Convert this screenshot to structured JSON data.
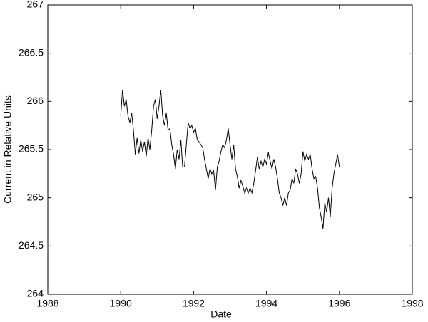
{
  "chart_data": {
    "type": "line",
    "xlabel": "Date",
    "ylabel": "Current in Relative Units",
    "xlim": [
      1988,
      1998
    ],
    "xticks": [
      1988,
      1990,
      1992,
      1994,
      1996,
      1998
    ],
    "ylim": [
      264,
      267
    ],
    "yticks": [
      264,
      264.5,
      265,
      265.5,
      266,
      266.5,
      267
    ],
    "x": [
      1990.0,
      1990.05,
      1990.1,
      1990.15,
      1990.2,
      1990.25,
      1990.3,
      1990.35,
      1990.4,
      1990.45,
      1990.5,
      1990.55,
      1990.6,
      1990.65,
      1990.7,
      1990.75,
      1990.8,
      1990.85,
      1990.9,
      1990.95,
      1991.0,
      1991.05,
      1991.1,
      1991.15,
      1991.2,
      1991.25,
      1991.3,
      1991.35,
      1991.4,
      1991.45,
      1991.5,
      1991.55,
      1991.6,
      1991.65,
      1991.7,
      1991.75,
      1991.8,
      1991.85,
      1991.9,
      1991.95,
      1992.0,
      1992.05,
      1992.1,
      1992.15,
      1992.2,
      1992.25,
      1992.3,
      1992.35,
      1992.4,
      1992.45,
      1992.5,
      1992.55,
      1992.6,
      1992.65,
      1992.7,
      1992.75,
      1992.8,
      1992.85,
      1992.9,
      1992.95,
      1993.0,
      1993.05,
      1993.1,
      1993.15,
      1993.2,
      1993.25,
      1993.3,
      1993.35,
      1993.4,
      1993.45,
      1993.5,
      1993.55,
      1993.6,
      1993.65,
      1993.7,
      1993.75,
      1993.8,
      1993.85,
      1993.9,
      1993.95,
      1994.0,
      1994.05,
      1994.1,
      1994.15,
      1994.2,
      1994.25,
      1994.3,
      1994.35,
      1994.4,
      1994.45,
      1994.5,
      1994.55,
      1994.6,
      1994.65,
      1994.7,
      1994.75,
      1994.8,
      1994.85,
      1994.9,
      1994.95,
      1995.0,
      1995.05,
      1995.1,
      1995.15,
      1995.2,
      1995.25,
      1995.3,
      1995.35,
      1995.4,
      1995.45,
      1995.5,
      1995.55,
      1995.6,
      1995.65,
      1995.7,
      1995.75,
      1995.8,
      1995.85,
      1995.9,
      1995.95,
      1996.0
    ],
    "series": [
      {
        "color": "#000000",
        "values": [
          265.85,
          266.12,
          265.95,
          266.02,
          265.85,
          265.78,
          265.88,
          265.7,
          265.45,
          265.62,
          265.46,
          265.6,
          265.48,
          265.58,
          265.43,
          265.62,
          265.5,
          265.7,
          265.95,
          266.02,
          265.82,
          265.95,
          266.12,
          265.85,
          265.75,
          265.88,
          265.7,
          265.72,
          265.55,
          265.45,
          265.3,
          265.5,
          265.4,
          265.6,
          265.32,
          265.32,
          265.55,
          265.78,
          265.72,
          265.75,
          265.68,
          265.72,
          265.6,
          265.58,
          265.55,
          265.52,
          265.4,
          265.3,
          265.2,
          265.3,
          265.25,
          265.28,
          265.08,
          265.32,
          265.38,
          265.48,
          265.55,
          265.52,
          265.6,
          265.72,
          265.55,
          265.4,
          265.55,
          265.3,
          265.22,
          265.1,
          265.18,
          265.12,
          265.05,
          265.1,
          265.05,
          265.1,
          265.05,
          265.15,
          265.28,
          265.42,
          265.3,
          265.38,
          265.32,
          265.4,
          265.35,
          265.47,
          265.38,
          265.3,
          265.4,
          265.32,
          265.2,
          265.05,
          265.0,
          264.92,
          265.0,
          264.92,
          265.05,
          265.08,
          265.2,
          265.15,
          265.3,
          265.25,
          265.15,
          265.25,
          265.48,
          265.38,
          265.45,
          265.4,
          265.45,
          265.3,
          265.2,
          265.22,
          265.1,
          264.9,
          264.8,
          264.68,
          264.95,
          264.85,
          265.0,
          264.8,
          265.1,
          265.25,
          265.35,
          265.45,
          265.32
        ]
      }
    ]
  }
}
